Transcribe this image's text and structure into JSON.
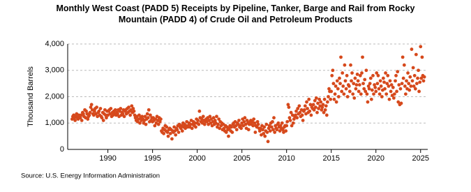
{
  "chart_data": {
    "type": "scatter",
    "title": "Monthly West Coast (PADD 5) Receipts by Pipeline, Tanker, Barge and Rail from Rocky Mountain (PADD 4) of Crude Oil and Petroleum Products",
    "y_label": "Thousand Barrels",
    "source": "Source: U.S. Energy Information Administration",
    "xlim": [
      1985.5,
      2025.8
    ],
    "xticks": [
      1990,
      1995,
      2000,
      2005,
      2010,
      2015,
      2020,
      2025
    ],
    "ylim": [
      0,
      4000
    ],
    "yticks": [
      0,
      {
        "value": 1000,
        "label": "1,000"
      },
      {
        "value": 2000,
        "label": "2,000"
      },
      {
        "value": 3000,
        "label": "3,000"
      },
      {
        "value": 4000,
        "label": "4,000"
      }
    ],
    "grid": true,
    "color": "#d6491c",
    "x": [
      1986,
      1986.08,
      1986.17,
      1986.25,
      1986.33,
      1986.42,
      1986.5,
      1986.58,
      1986.67,
      1986.75,
      1986.83,
      1986.92,
      1987,
      1987.08,
      1987.17,
      1987.25,
      1987.33,
      1987.42,
      1987.5,
      1987.58,
      1987.67,
      1987.75,
      1987.83,
      1987.92,
      1988,
      1988.08,
      1988.17,
      1988.25,
      1988.33,
      1988.42,
      1988.5,
      1988.58,
      1988.67,
      1988.75,
      1988.83,
      1988.92,
      1989,
      1989.08,
      1989.17,
      1989.25,
      1989.33,
      1989.42,
      1989.5,
      1989.58,
      1989.67,
      1989.75,
      1989.83,
      1989.92,
      1990,
      1990.08,
      1990.17,
      1990.25,
      1990.33,
      1990.42,
      1990.5,
      1990.58,
      1990.67,
      1990.75,
      1990.83,
      1990.92,
      1991,
      1991.08,
      1991.17,
      1991.25,
      1991.33,
      1991.42,
      1991.5,
      1991.58,
      1991.67,
      1991.75,
      1991.83,
      1991.92,
      1992,
      1992.08,
      1992.17,
      1992.25,
      1992.33,
      1992.42,
      1992.5,
      1992.58,
      1992.67,
      1992.75,
      1992.83,
      1992.92,
      1993,
      1993.08,
      1993.17,
      1993.25,
      1993.33,
      1993.42,
      1993.5,
      1993.58,
      1993.67,
      1993.75,
      1993.83,
      1993.92,
      1994,
      1994.08,
      1994.17,
      1994.25,
      1994.33,
      1994.42,
      1994.5,
      1994.58,
      1994.67,
      1994.75,
      1994.83,
      1994.92,
      1995,
      1995.08,
      1995.17,
      1995.25,
      1995.33,
      1995.42,
      1995.5,
      1995.58,
      1995.67,
      1995.75,
      1995.83,
      1995.92,
      1996,
      1996.08,
      1996.17,
      1996.25,
      1996.33,
      1996.42,
      1996.5,
      1996.58,
      1996.67,
      1996.75,
      1996.83,
      1996.92,
      1997,
      1997.08,
      1997.17,
      1997.25,
      1997.33,
      1997.42,
      1997.5,
      1997.58,
      1997.67,
      1997.75,
      1997.83,
      1997.92,
      1998,
      1998.08,
      1998.17,
      1998.25,
      1998.33,
      1998.42,
      1998.5,
      1998.58,
      1998.67,
      1998.75,
      1998.83,
      1998.92,
      1999,
      1999.08,
      1999.17,
      1999.25,
      1999.33,
      1999.42,
      1999.5,
      1999.58,
      1999.67,
      1999.75,
      1999.83,
      1999.92,
      2000,
      2000.08,
      2000.17,
      2000.25,
      2000.33,
      2000.42,
      2000.5,
      2000.58,
      2000.67,
      2000.75,
      2000.83,
      2000.92,
      2001,
      2001.08,
      2001.17,
      2001.25,
      2001.33,
      2001.42,
      2001.5,
      2001.58,
      2001.67,
      2001.75,
      2001.83,
      2001.92,
      2002,
      2002.08,
      2002.17,
      2002.25,
      2002.33,
      2002.42,
      2002.5,
      2002.58,
      2002.67,
      2002.75,
      2002.83,
      2002.92,
      2003,
      2003.08,
      2003.17,
      2003.25,
      2003.33,
      2003.42,
      2003.5,
      2003.58,
      2003.67,
      2003.75,
      2003.83,
      2003.92,
      2004,
      2004.08,
      2004.17,
      2004.25,
      2004.33,
      2004.42,
      2004.5,
      2004.58,
      2004.67,
      2004.75,
      2004.83,
      2004.92,
      2005,
      2005.08,
      2005.17,
      2005.25,
      2005.33,
      2005.42,
      2005.5,
      2005.58,
      2005.67,
      2005.75,
      2005.83,
      2005.92,
      2006,
      2006.08,
      2006.17,
      2006.25,
      2006.33,
      2006.42,
      2006.5,
      2006.58,
      2006.67,
      2006.75,
      2006.83,
      2006.92,
      2007,
      2007.08,
      2007.17,
      2007.25,
      2007.33,
      2007.42,
      2007.5,
      2007.58,
      2007.67,
      2007.75,
      2007.83,
      2007.92,
      2008,
      2008.08,
      2008.17,
      2008.25,
      2008.33,
      2008.42,
      2008.5,
      2008.58,
      2008.67,
      2008.75,
      2008.83,
      2008.92,
      2009,
      2009.08,
      2009.17,
      2009.25,
      2009.33,
      2009.42,
      2009.5,
      2009.58,
      2009.67,
      2009.75,
      2009.83,
      2009.92,
      2010,
      2010.08,
      2010.17,
      2010.25,
      2010.33,
      2010.42,
      2010.5,
      2010.58,
      2010.67,
      2010.75,
      2010.83,
      2010.92,
      2011,
      2011.08,
      2011.17,
      2011.25,
      2011.33,
      2011.42,
      2011.5,
      2011.58,
      2011.67,
      2011.75,
      2011.83,
      2011.92,
      2012,
      2012.08,
      2012.17,
      2012.25,
      2012.33,
      2012.42,
      2012.5,
      2012.58,
      2012.67,
      2012.75,
      2012.83,
      2012.92,
      2013,
      2013.08,
      2013.17,
      2013.25,
      2013.33,
      2013.42,
      2013.5,
      2013.58,
      2013.67,
      2013.75,
      2013.83,
      2013.92,
      2014,
      2014.08,
      2014.17,
      2014.25,
      2014.33,
      2014.42,
      2014.5,
      2014.58,
      2014.67,
      2014.75,
      2014.83,
      2014.92,
      2015,
      2015.08,
      2015.17,
      2015.25,
      2015.33,
      2015.42,
      2015.5,
      2015.58,
      2015.67,
      2015.75,
      2015.83,
      2015.92,
      2016,
      2016.08,
      2016.17,
      2016.25,
      2016.33,
      2016.42,
      2016.5,
      2016.58,
      2016.67,
      2016.75,
      2016.83,
      2016.92,
      2017,
      2017.08,
      2017.17,
      2017.25,
      2017.33,
      2017.42,
      2017.5,
      2017.58,
      2017.67,
      2017.75,
      2017.83,
      2017.92,
      2018,
      2018.08,
      2018.17,
      2018.25,
      2018.33,
      2018.42,
      2018.5,
      2018.58,
      2018.67,
      2018.75,
      2018.83,
      2018.92,
      2019,
      2019.08,
      2019.17,
      2019.25,
      2019.33,
      2019.42,
      2019.5,
      2019.58,
      2019.67,
      2019.75,
      2019.83,
      2019.92,
      2020,
      2020.08,
      2020.17,
      2020.25,
      2020.33,
      2020.42,
      2020.5,
      2020.58,
      2020.67,
      2020.75,
      2020.83,
      2020.92,
      2021,
      2021.08,
      2021.17,
      2021.25,
      2021.33,
      2021.42,
      2021.5,
      2021.58,
      2021.67,
      2021.75,
      2021.83,
      2021.92,
      2022,
      2022.08,
      2022.17,
      2022.25,
      2022.33,
      2022.42,
      2022.5,
      2022.58,
      2022.67,
      2022.75,
      2022.83,
      2022.92,
      2023,
      2023.08,
      2023.17,
      2023.25,
      2023.33,
      2023.42,
      2023.5,
      2023.58,
      2023.67,
      2023.75,
      2023.83,
      2023.92,
      2024,
      2024.08,
      2024.17,
      2024.25,
      2024.33,
      2024.42,
      2024.5,
      2024.58,
      2024.67,
      2024.75,
      2024.83,
      2024.92,
      2025,
      2025.08,
      2025.17,
      2025.25,
      2025.33,
      2025.42
    ],
    "values": [
      1150,
      1250,
      1300,
      1200,
      1100,
      1250,
      1350,
      1200,
      1150,
      1300,
      1250,
      1200,
      1300,
      1100,
      1400,
      1350,
      1250,
      1500,
      1200,
      1450,
      1350,
      1150,
      1250,
      1300,
      1400,
      1600,
      1700,
      1500,
      1350,
      1300,
      1450,
      1550,
      1350,
      1600,
      1250,
      1400,
      1450,
      1300,
      1550,
      1250,
      1200,
      1400,
      1100,
      1350,
      1500,
      1300,
      1200,
      1450,
      1300,
      1450,
      1500,
      1350,
      1550,
      1250,
      1400,
      1300,
      1450,
      1350,
      1500,
      1300,
      1400,
      1350,
      1500,
      1250,
      1450,
      1550,
      1300,
      1400,
      1350,
      1500,
      1250,
      1450,
      1500,
      1350,
      1550,
      1400,
      1600,
      1450,
      1300,
      1500,
      1650,
      1400,
      1550,
      1450,
      1300,
      1200,
      1100,
      1250,
      1050,
      1150,
      1300,
      1000,
      1200,
      1100,
      1250,
      1150,
      1000,
      1100,
      1250,
      950,
      1150,
      1350,
      1200,
      1500,
      1050,
      1300,
      1100,
      1200,
      1050,
      1200,
      1100,
      900,
      1150,
      1000,
      1250,
      1100,
      950,
      1200,
      1050,
      1150,
      700,
      650,
      800,
      600,
      750,
      900,
      700,
      850,
      650,
      500,
      750,
      800,
      600,
      750,
      400,
      700,
      650,
      850,
      700,
      550,
      800,
      750,
      900,
      650,
      950,
      850,
      800,
      900,
      700,
      1000,
      850,
      950,
      800,
      900,
      1050,
      850,
      900,
      1000,
      850,
      950,
      1100,
      800,
      950,
      1050,
      900,
      1000,
      850,
      1150,
      1000,
      1100,
      950,
      1450,
      1200,
      1050,
      1150,
      1000,
      1250,
      1100,
      950,
      1050,
      1150,
      1050,
      1200,
      950,
      1100,
      1250,
      1000,
      1150,
      900,
      1050,
      1200,
      950,
      1100,
      1000,
      1250,
      850,
      950,
      1150,
      800,
      1050,
      900,
      1000,
      750,
      950,
      800,
      700,
      900,
      650,
      850,
      750,
      500,
      800,
      900,
      700,
      850,
      650,
      950,
      1000,
      850,
      1050,
      900,
      750,
      1000,
      950,
      1100,
      850,
      900,
      800,
      1000,
      1150,
      900,
      1050,
      1200,
      950,
      800,
      1100,
      1000,
      750,
      950,
      1050,
      1100,
      950,
      1050,
      900,
      1150,
      1000,
      650,
      900,
      850,
      1050,
      950,
      800,
      700,
      800,
      550,
      900,
      750,
      600,
      850,
      500,
      700,
      950,
      650,
      300,
      800,
      900,
      700,
      1000,
      850,
      1050,
      750,
      1200,
      650,
      900,
      800,
      750,
      950,
      1000,
      850,
      700,
      900,
      800,
      1000,
      750,
      650,
      850,
      900,
      700,
      900,
      1050,
      1700,
      1600,
      1200,
      1100,
      1400,
      900,
      1300,
      1000,
      1150,
      1250,
      1300,
      1450,
      1200,
      1550,
      1350,
      1650,
      1400,
      1250,
      1500,
      1300,
      1100,
      1450,
      1500,
      1650,
      1350,
      1800,
      1550,
      1400,
      1900,
      1450,
      1700,
      1300,
      1600,
      1550,
      1700,
      1500,
      1850,
      1600,
      1950,
      1400,
      1750,
      1550,
      1900,
      1650,
      1800,
      1500,
      1600,
      1700,
      1400,
      1900,
      1500,
      1650,
      1300,
      1800,
      2000,
      2300,
      2200,
      1900,
      2200,
      2800,
      3000,
      2500,
      1900,
      2100,
      2400,
      1800,
      2600,
      2300,
      2000,
      2700,
      2500,
      3500,
      2200,
      2900,
      2400,
      2100,
      3200,
      2600,
      2300,
      2800,
      2000,
      2450,
      2400,
      2200,
      3200,
      2600,
      2900,
      2100,
      2500,
      1950,
      2700,
      2300,
      2450,
      2850,
      2600,
      2200,
      2450,
      2800,
      2100,
      2900,
      3500,
      2500,
      2300,
      2650,
      2200,
      3000,
      2100,
      1800,
      2400,
      2300,
      2500,
      2700,
      1900,
      2250,
      2800,
      2100,
      2450,
      2350,
      2200,
      2900,
      2500,
      2800,
      2300,
      2100,
      2600,
      2400,
      2000,
      2250,
      2700,
      2550,
      2300,
      2900,
      2100,
      2500,
      2800,
      2400,
      1900,
      2600,
      2200,
      2450,
      2050,
      2350,
      1950,
      2100,
      2600,
      2800,
      2200,
      2950,
      1800,
      2450,
      1700,
      2300,
      1750,
      2500,
      3500,
      2700,
      3200,
      2400,
      2100,
      2600,
      2300,
      2900,
      2500,
      2250,
      2750,
      2400,
      3800,
      2600,
      3100,
      2400,
      2800,
      2300,
      3600,
      2500,
      2700,
      3000,
      2200,
      2550,
      3900,
      2700,
      3500,
      2800,
      2600,
      2750
    ]
  }
}
